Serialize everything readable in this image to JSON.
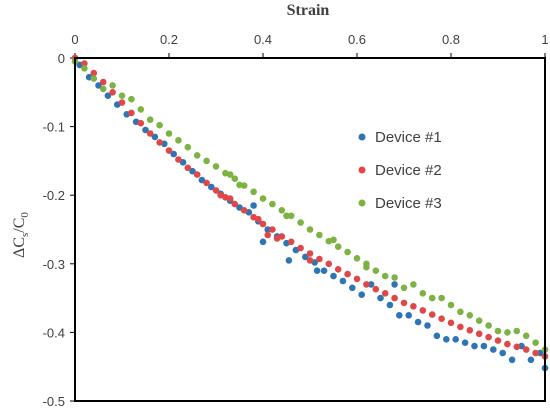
{
  "chart_data": {
    "type": "scatter",
    "xlabel": "Strain",
    "ylabel_parts": {
      "delta": "ΔC",
      "sub1": "s",
      "slash": "/C",
      "sub2": "0"
    },
    "xlim": [
      0,
      1
    ],
    "ylim": [
      -0.5,
      0
    ],
    "x_ticks": [
      "0",
      "0.2",
      "0.4",
      "0.6",
      "0.8",
      "1"
    ],
    "y_ticks": [
      "0",
      "-0.1",
      "-0.2",
      "-0.3",
      "-0.4",
      "-0.5"
    ],
    "x_axis_position": "top",
    "grid": false,
    "legend_position": "right-middle",
    "series": [
      {
        "name": "Device #1",
        "color": "#2e75b6",
        "points": [
          [
            0,
            0
          ],
          [
            0.01,
            -0.01
          ],
          [
            0.03,
            -0.028
          ],
          [
            0.05,
            -0.04
          ],
          [
            0.07,
            -0.055
          ],
          [
            0.09,
            -0.068
          ],
          [
            0.11,
            -0.082
          ],
          [
            0.13,
            -0.093
          ],
          [
            0.15,
            -0.105
          ],
          [
            0.17,
            -0.115
          ],
          [
            0.19,
            -0.125
          ],
          [
            0.21,
            -0.14
          ],
          [
            0.23,
            -0.152
          ],
          [
            0.25,
            -0.165
          ],
          [
            0.27,
            -0.178
          ],
          [
            0.29,
            -0.188
          ],
          [
            0.31,
            -0.198
          ],
          [
            0.33,
            -0.208
          ],
          [
            0.35,
            -0.218
          ],
          [
            0.37,
            -0.225
          ],
          [
            0.39,
            -0.238
          ],
          [
            0.41,
            -0.25
          ],
          [
            0.43,
            -0.26
          ],
          [
            0.45,
            -0.27
          ],
          [
            0.47,
            -0.28
          ],
          [
            0.49,
            -0.29
          ],
          [
            0.51,
            -0.298
          ],
          [
            0.53,
            -0.31
          ],
          [
            0.55,
            -0.318
          ],
          [
            0.57,
            -0.325
          ],
          [
            0.59,
            -0.335
          ],
          [
            0.61,
            -0.345
          ],
          [
            0.63,
            -0.33
          ],
          [
            0.65,
            -0.35
          ],
          [
            0.67,
            -0.36
          ],
          [
            0.69,
            -0.375
          ],
          [
            0.71,
            -0.375
          ],
          [
            0.73,
            -0.385
          ],
          [
            0.75,
            -0.39
          ],
          [
            0.77,
            -0.405
          ],
          [
            0.79,
            -0.41
          ],
          [
            0.81,
            -0.41
          ],
          [
            0.83,
            -0.415
          ],
          [
            0.85,
            -0.42
          ],
          [
            0.87,
            -0.42
          ],
          [
            0.89,
            -0.425
          ],
          [
            0.91,
            -0.43
          ],
          [
            0.93,
            -0.44
          ],
          [
            0.95,
            -0.42
          ],
          [
            0.97,
            -0.44
          ],
          [
            0.99,
            -0.43
          ],
          [
            1.0,
            -0.452
          ],
          [
            0.38,
            -0.215
          ],
          [
            0.4,
            -0.268
          ],
          [
            0.455,
            -0.295
          ],
          [
            0.515,
            -0.31
          ],
          [
            0.68,
            -0.33
          ]
        ]
      },
      {
        "name": "Device #2",
        "color": "#e04848",
        "points": [
          [
            0,
            0
          ],
          [
            0.02,
            -0.008
          ],
          [
            0.04,
            -0.022
          ],
          [
            0.06,
            -0.035
          ],
          [
            0.08,
            -0.05
          ],
          [
            0.1,
            -0.065
          ],
          [
            0.12,
            -0.08
          ],
          [
            0.14,
            -0.095
          ],
          [
            0.16,
            -0.11
          ],
          [
            0.18,
            -0.123
          ],
          [
            0.2,
            -0.135
          ],
          [
            0.22,
            -0.148
          ],
          [
            0.24,
            -0.16
          ],
          [
            0.26,
            -0.17
          ],
          [
            0.28,
            -0.182
          ],
          [
            0.3,
            -0.193
          ],
          [
            0.32,
            -0.203
          ],
          [
            0.34,
            -0.213
          ],
          [
            0.36,
            -0.222
          ],
          [
            0.38,
            -0.232
          ],
          [
            0.4,
            -0.242
          ],
          [
            0.42,
            -0.25
          ],
          [
            0.44,
            -0.26
          ],
          [
            0.46,
            -0.268
          ],
          [
            0.48,
            -0.277
          ],
          [
            0.5,
            -0.285
          ],
          [
            0.52,
            -0.293
          ],
          [
            0.54,
            -0.3
          ],
          [
            0.56,
            -0.308
          ],
          [
            0.58,
            -0.315
          ],
          [
            0.6,
            -0.322
          ],
          [
            0.62,
            -0.33
          ],
          [
            0.64,
            -0.337
          ],
          [
            0.66,
            -0.343
          ],
          [
            0.68,
            -0.35
          ],
          [
            0.7,
            -0.357
          ],
          [
            0.72,
            -0.362
          ],
          [
            0.74,
            -0.368
          ],
          [
            0.76,
            -0.374
          ],
          [
            0.78,
            -0.38
          ],
          [
            0.8,
            -0.386
          ],
          [
            0.82,
            -0.392
          ],
          [
            0.84,
            -0.397
          ],
          [
            0.86,
            -0.402
          ],
          [
            0.88,
            -0.407
          ],
          [
            0.9,
            -0.412
          ],
          [
            0.92,
            -0.417
          ],
          [
            0.94,
            -0.421
          ],
          [
            0.96,
            -0.425
          ],
          [
            0.98,
            -0.43
          ],
          [
            1.0,
            -0.435
          ],
          [
            0.31,
            -0.2
          ],
          [
            0.33,
            -0.205
          ],
          [
            0.39,
            -0.235
          ],
          [
            0.41,
            -0.258
          ],
          [
            0.43,
            -0.263
          ],
          [
            0.5,
            -0.295
          ]
        ]
      },
      {
        "name": "Device #3",
        "color": "#7cb342",
        "points": [
          [
            0,
            -0.005
          ],
          [
            0.02,
            -0.015
          ],
          [
            0.04,
            -0.03
          ],
          [
            0.06,
            -0.045
          ],
          [
            0.08,
            -0.04
          ],
          [
            0.1,
            -0.055
          ],
          [
            0.12,
            -0.06
          ],
          [
            0.14,
            -0.075
          ],
          [
            0.16,
            -0.09
          ],
          [
            0.18,
            -0.098
          ],
          [
            0.2,
            -0.11
          ],
          [
            0.22,
            -0.12
          ],
          [
            0.24,
            -0.13
          ],
          [
            0.26,
            -0.142
          ],
          [
            0.28,
            -0.15
          ],
          [
            0.3,
            -0.158
          ],
          [
            0.32,
            -0.168
          ],
          [
            0.34,
            -0.176
          ],
          [
            0.36,
            -0.186
          ],
          [
            0.38,
            -0.195
          ],
          [
            0.4,
            -0.205
          ],
          [
            0.42,
            -0.213
          ],
          [
            0.44,
            -0.222
          ],
          [
            0.46,
            -0.23
          ],
          [
            0.48,
            -0.24
          ],
          [
            0.5,
            -0.25
          ],
          [
            0.52,
            -0.258
          ],
          [
            0.54,
            -0.267
          ],
          [
            0.56,
            -0.275
          ],
          [
            0.58,
            -0.283
          ],
          [
            0.6,
            -0.292
          ],
          [
            0.62,
            -0.3
          ],
          [
            0.64,
            -0.31
          ],
          [
            0.66,
            -0.318
          ],
          [
            0.68,
            -0.32
          ],
          [
            0.7,
            -0.335
          ],
          [
            0.72,
            -0.33
          ],
          [
            0.74,
            -0.343
          ],
          [
            0.76,
            -0.35
          ],
          [
            0.78,
            -0.35
          ],
          [
            0.8,
            -0.36
          ],
          [
            0.82,
            -0.37
          ],
          [
            0.84,
            -0.375
          ],
          [
            0.86,
            -0.383
          ],
          [
            0.88,
            -0.39
          ],
          [
            0.9,
            -0.398
          ],
          [
            0.92,
            -0.4
          ],
          [
            0.94,
            -0.398
          ],
          [
            0.96,
            -0.405
          ],
          [
            0.98,
            -0.415
          ],
          [
            1.0,
            -0.425
          ],
          [
            0.33,
            -0.17
          ],
          [
            0.35,
            -0.185
          ],
          [
            0.45,
            -0.23
          ],
          [
            0.55,
            -0.265
          ],
          [
            0.62,
            -0.305
          ]
        ]
      }
    ]
  }
}
